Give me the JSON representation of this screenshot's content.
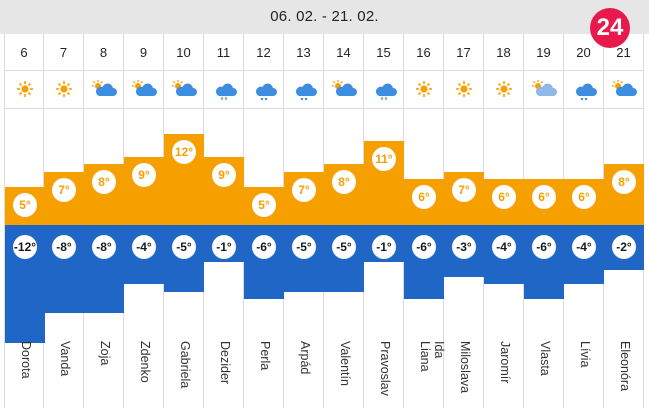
{
  "header": {
    "date_range": "06. 02. - 21. 02."
  },
  "logo": {
    "text": "24",
    "color": "#e8194d"
  },
  "colors": {
    "high": "#f6a000",
    "low": "#1f66c6"
  },
  "days": [
    {
      "day": "6",
      "name": "Dorota",
      "icon": "sun-icon",
      "high": "5°",
      "low": "-12°",
      "hi_v": 5,
      "lo_v": -12
    },
    {
      "day": "7",
      "name": "Vanda",
      "icon": "sun-icon",
      "high": "7°",
      "low": "-8°",
      "hi_v": 7,
      "lo_v": -8
    },
    {
      "day": "8",
      "name": "Zoja",
      "icon": "partly-cloudy-icon",
      "high": "8°",
      "low": "-8°",
      "hi_v": 8,
      "lo_v": -8
    },
    {
      "day": "9",
      "name": "Zdenko",
      "icon": "partly-cloudy-icon",
      "high": "9°",
      "low": "-4°",
      "hi_v": 9,
      "lo_v": -4
    },
    {
      "day": "10",
      "name": "Gabriela",
      "icon": "partly-cloudy-icon",
      "high": "12°",
      "low": "-5°",
      "hi_v": 12,
      "lo_v": -5
    },
    {
      "day": "11",
      "name": "Dezider",
      "icon": "rain-cloud-icon",
      "high": "9°",
      "low": "-1°",
      "hi_v": 9,
      "lo_v": -1
    },
    {
      "day": "12",
      "name": "Perla",
      "icon": "snow-cloud-icon",
      "high": "5°",
      "low": "-6°",
      "hi_v": 5,
      "lo_v": -6
    },
    {
      "day": "13",
      "name": "Arpád",
      "icon": "snow-cloud-icon",
      "high": "7°",
      "low": "-5°",
      "hi_v": 7,
      "lo_v": -5
    },
    {
      "day": "14",
      "name": "Valentín",
      "icon": "partly-cloudy-icon",
      "high": "8°",
      "low": "-5°",
      "hi_v": 8,
      "lo_v": -5
    },
    {
      "day": "15",
      "name": "Pravoslav",
      "icon": "rain-cloud-icon",
      "high": "11°",
      "low": "-1°",
      "hi_v": 11,
      "lo_v": -1
    },
    {
      "day": "16",
      "name": "Ida\nLiana",
      "icon": "sun-icon",
      "high": "6°",
      "low": "-6°",
      "hi_v": 6,
      "lo_v": -6
    },
    {
      "day": "17",
      "name": "Miloslava",
      "icon": "sun-icon",
      "high": "7°",
      "low": "-3°",
      "hi_v": 7,
      "lo_v": -3
    },
    {
      "day": "18",
      "name": "Jaromír",
      "icon": "sun-icon",
      "high": "6°",
      "low": "-4°",
      "hi_v": 6,
      "lo_v": -4
    },
    {
      "day": "19",
      "name": "Vlasta",
      "icon": "partly-cloudy-light-icon",
      "high": "6°",
      "low": "-6°",
      "hi_v": 6,
      "lo_v": -6
    },
    {
      "day": "20",
      "name": "Lívia",
      "icon": "snow-cloud-icon",
      "high": "6°",
      "low": "-4°",
      "hi_v": 6,
      "lo_v": -4
    },
    {
      "day": "21",
      "name": "Eleonóra",
      "icon": "partly-cloudy-icon",
      "high": "8°",
      "low": "-2°",
      "hi_v": 8,
      "lo_v": -2
    }
  ]
}
